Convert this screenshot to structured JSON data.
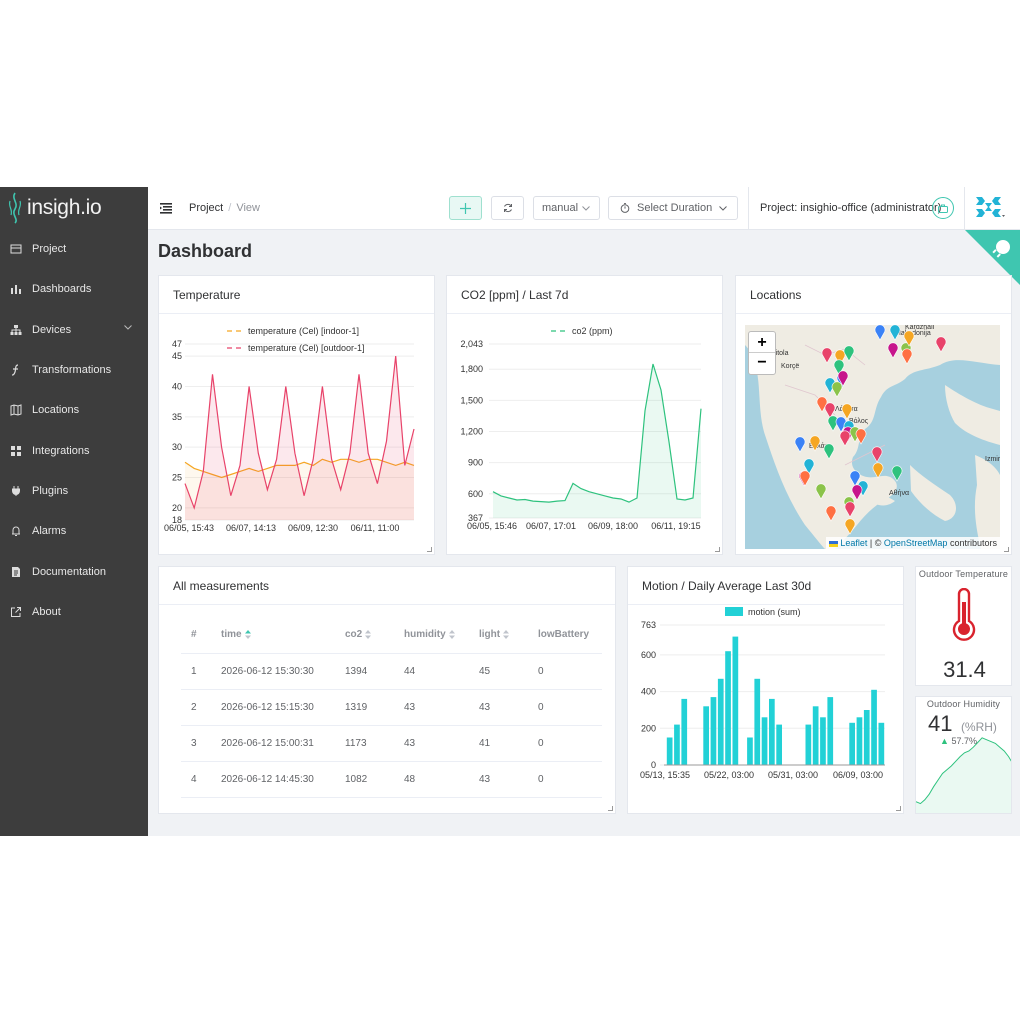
{
  "app": {
    "name": "insigh.io"
  },
  "sidebar": {
    "items": [
      {
        "label": "Project",
        "icon": "project-icon"
      },
      {
        "label": "Dashboards",
        "icon": "chart-bar-icon"
      },
      {
        "label": "Devices",
        "icon": "devices-icon"
      },
      {
        "label": "Transformations",
        "icon": "function-icon"
      },
      {
        "label": "Locations",
        "icon": "map-icon"
      },
      {
        "label": "Integrations",
        "icon": "grid-icon"
      },
      {
        "label": "Plugins",
        "icon": "plug-icon"
      },
      {
        "label": "Alarms",
        "icon": "bell-icon"
      },
      {
        "label": "Documentation",
        "icon": "document-icon"
      },
      {
        "label": "About",
        "icon": "external-link-icon"
      }
    ]
  },
  "header": {
    "breadcrumb": [
      "Project",
      "View"
    ],
    "refresh_mode": "manual",
    "duration_label": "Select Duration",
    "project_label": "Project: insighio-office (administrator)"
  },
  "page": {
    "title": "Dashboard"
  },
  "colors": {
    "indoor": "#f5a623",
    "outdoor": "#e8436a",
    "co2": "#2ec27e",
    "motion": "#22d1d6",
    "accent": "#3fc6b0"
  },
  "temperature_card": {
    "title": "Temperature",
    "chart_data": {
      "type": "line",
      "series": [
        {
          "name": "temperature (Cel) [indoor-1]",
          "color": "#f5a623",
          "values": [
            27.5,
            26.5,
            26,
            25.5,
            25,
            25.5,
            26,
            26.5,
            26,
            26.5,
            27,
            27,
            27,
            27.5,
            27,
            28,
            27.5,
            28,
            28,
            27.5,
            28,
            28,
            27.5,
            27,
            27.5,
            27
          ]
        },
        {
          "name": "temperature (Cel) [outdoor-1]",
          "color": "#e8436a",
          "values": [
            24,
            20,
            26,
            42,
            30,
            22,
            27,
            40,
            29,
            23,
            28,
            40,
            29,
            22,
            28,
            40,
            28,
            23,
            29,
            42,
            29,
            24,
            31,
            45,
            27,
            33
          ]
        }
      ],
      "x_ticks": [
        "06/05, 15:43",
        "06/07, 14:13",
        "06/09, 12:30",
        "06/11, 11:00"
      ],
      "y_ticks": [
        18,
        20,
        25,
        30,
        35,
        40,
        45,
        47
      ],
      "ylim": [
        18,
        47
      ],
      "legend": "top"
    }
  },
  "co2_card": {
    "title": "CO2 [ppm] / Last 7d",
    "chart_data": {
      "type": "area",
      "series": [
        {
          "name": "co2 (ppm)",
          "color": "#2ec27e"
        }
      ],
      "values": [
        620,
        580,
        560,
        540,
        545,
        530,
        525,
        520,
        530,
        535,
        700,
        650,
        620,
        600,
        580,
        560,
        550,
        520,
        560,
        1400,
        1850,
        1600,
        1100,
        550,
        540,
        560,
        1420
      ],
      "x_ticks": [
        "06/05, 15:46",
        "06/07, 17:01",
        "06/09, 18:00",
        "06/11, 19:15"
      ],
      "y_ticks": [
        367,
        600,
        900,
        1200,
        1500,
        1800,
        2043
      ],
      "ylim": [
        367,
        2043
      ],
      "legend": "top"
    }
  },
  "locations_card": {
    "title": "Locations",
    "zoom_in": "+",
    "zoom_out": "−",
    "attribution_leaflet": "Leaflet",
    "attribution_osm": "OpenStreetMap",
    "attribution_prefix": "| ©",
    "attribution_suffix": "contributors",
    "labels": [
      "Bitola",
      "Korçë",
      "Λάρισα",
      "Βόλος",
      "Ελλάς",
      "Αθήνα",
      "Makedonija",
      "Kardzhali",
      "Izmir"
    ]
  },
  "measurements_card": {
    "title": "All measurements",
    "columns": [
      "#",
      "time",
      "co2",
      "humidity",
      "light",
      "lowBattery"
    ],
    "rows": [
      [
        "1",
        "2026-06-12 15:30:30",
        "1394",
        "44",
        "45",
        "0"
      ],
      [
        "2",
        "2026-06-12 15:15:30",
        "1319",
        "43",
        "43",
        "0"
      ],
      [
        "3",
        "2026-06-12 15:00:31",
        "1173",
        "43",
        "41",
        "0"
      ],
      [
        "4",
        "2026-06-12 14:45:30",
        "1082",
        "48",
        "43",
        "0"
      ]
    ]
  },
  "motion_card": {
    "title": "Motion / Daily Average Last 30d",
    "chart_data": {
      "type": "bar",
      "series": [
        {
          "name": "motion (sum)",
          "color": "#22d1d6"
        }
      ],
      "values": [
        150,
        220,
        360,
        0,
        0,
        320,
        370,
        470,
        620,
        700,
        0,
        150,
        470,
        260,
        360,
        220,
        0,
        0,
        0,
        220,
        320,
        260,
        370,
        0,
        0,
        230,
        260,
        300,
        410,
        230
      ],
      "x_ticks": [
        "05/13, 15:35",
        "05/22, 03:00",
        "05/31, 03:00",
        "06/09, 03:00"
      ],
      "y_ticks": [
        0,
        200,
        400,
        600,
        763
      ],
      "ylim": [
        0,
        763
      ],
      "legend": "top"
    }
  },
  "outdoor_temp": {
    "title": "Outdoor Temperature",
    "value": "31.4"
  },
  "outdoor_humidity": {
    "title": "Outdoor Humidity",
    "value": "41",
    "unit": "(%RH)",
    "change": "57.7%",
    "chart_data": {
      "type": "area",
      "values": [
        12,
        10,
        14,
        20,
        28,
        35,
        42,
        46,
        50,
        55,
        60,
        64,
        66,
        70,
        75,
        80,
        78,
        76,
        74,
        70,
        66,
        60,
        52
      ]
    }
  }
}
